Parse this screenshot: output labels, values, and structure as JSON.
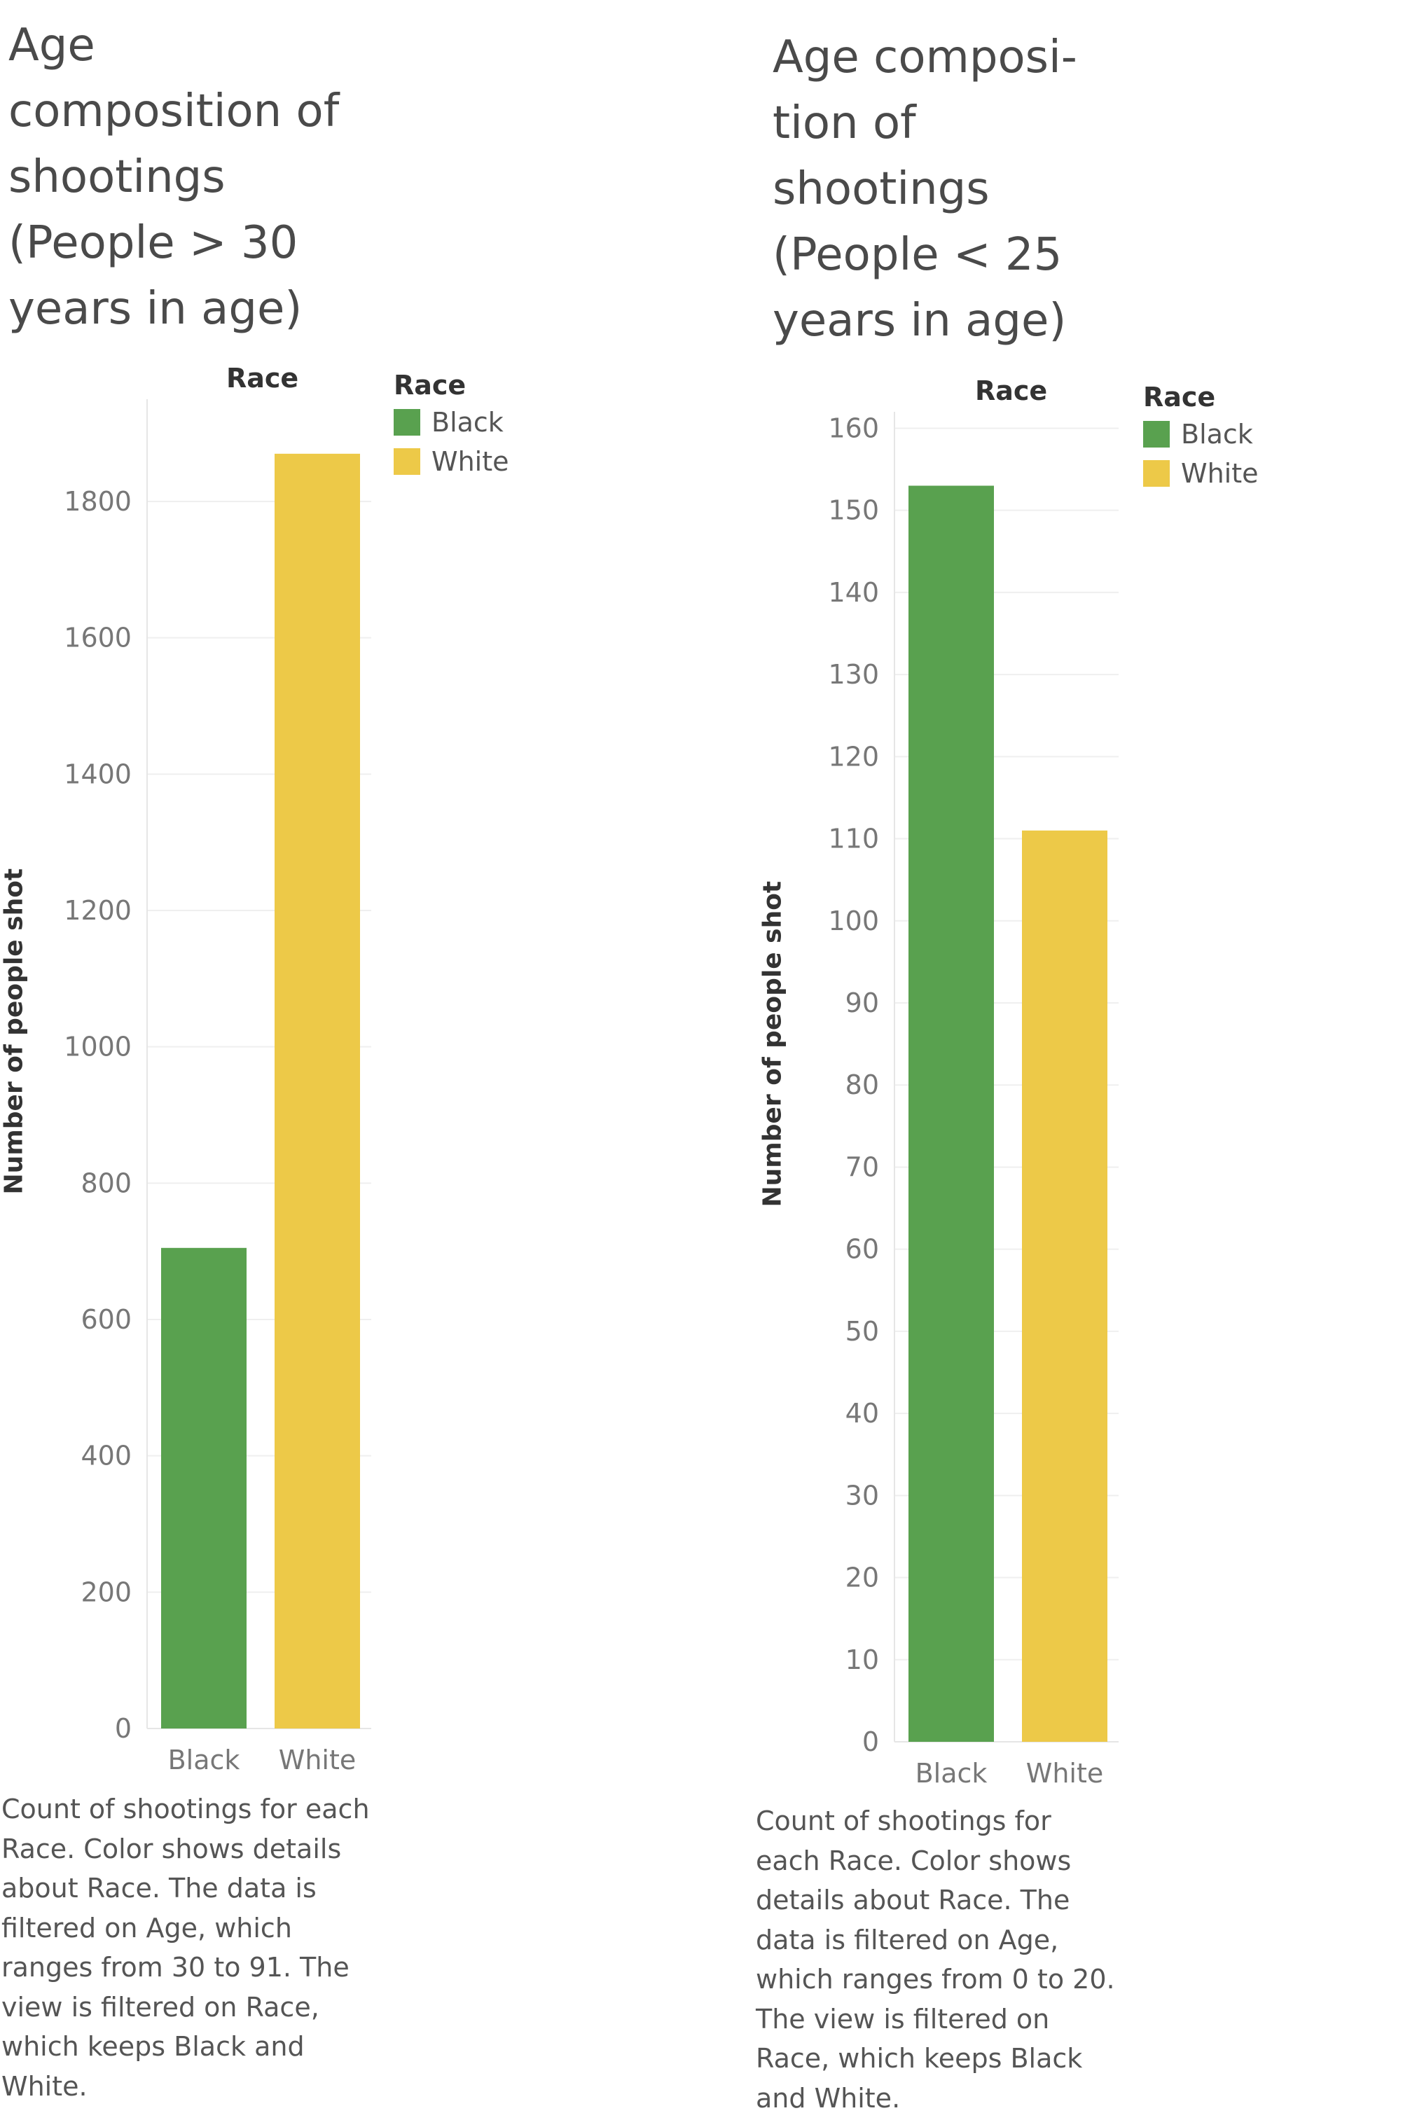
{
  "colors": {
    "black_series": "#59a14f",
    "white_series": "#edc948",
    "grid": "#efefef"
  },
  "chart_data": [
    {
      "type": "bar",
      "title_lines": [
        "Age",
        "composition of",
        "shootings",
        "(People > 30",
        "years in age)"
      ],
      "column_header": "Race",
      "categories": [
        "Black",
        "White"
      ],
      "values": [
        705,
        1870
      ],
      "ylabel": "Number of people shot",
      "ylim": [
        0,
        1950
      ],
      "y_ticks": [
        0,
        200,
        400,
        600,
        800,
        1000,
        1200,
        1400,
        1600,
        1800
      ],
      "grid": true,
      "legend": {
        "title": "Race",
        "placement": "top-right",
        "entries": [
          "Black",
          "White"
        ]
      },
      "caption_lines": [
        "Count of shootings for each",
        "Race.  Color shows details",
        "about Race. The data is",
        "filtered on Age, which",
        "ranges from 30 to 91. The",
        "view is filtered on Race,",
        "which keeps Black and",
        "White."
      ]
    },
    {
      "type": "bar",
      "title_lines": [
        "Age composi-",
        "tion of",
        "shootings",
        "(People < 25",
        "years in age)"
      ],
      "column_header": "Race",
      "categories": [
        "Black",
        "White"
      ],
      "values": [
        153,
        111
      ],
      "ylabel": "Number of people shot",
      "ylim": [
        0,
        162
      ],
      "y_ticks": [
        0,
        10,
        20,
        30,
        40,
        50,
        60,
        70,
        80,
        90,
        100,
        110,
        120,
        130,
        140,
        150,
        160
      ],
      "grid": true,
      "legend": {
        "title": "Race",
        "placement": "top-right",
        "entries": [
          "Black",
          "White"
        ]
      },
      "caption_lines": [
        "Count of shootings for",
        "each Race.  Color shows",
        "details about Race. The",
        "data is filtered on Age,",
        "which ranges from 0 to 20.",
        "The view is filtered on",
        "Race, which keeps Black",
        "and White."
      ]
    }
  ]
}
